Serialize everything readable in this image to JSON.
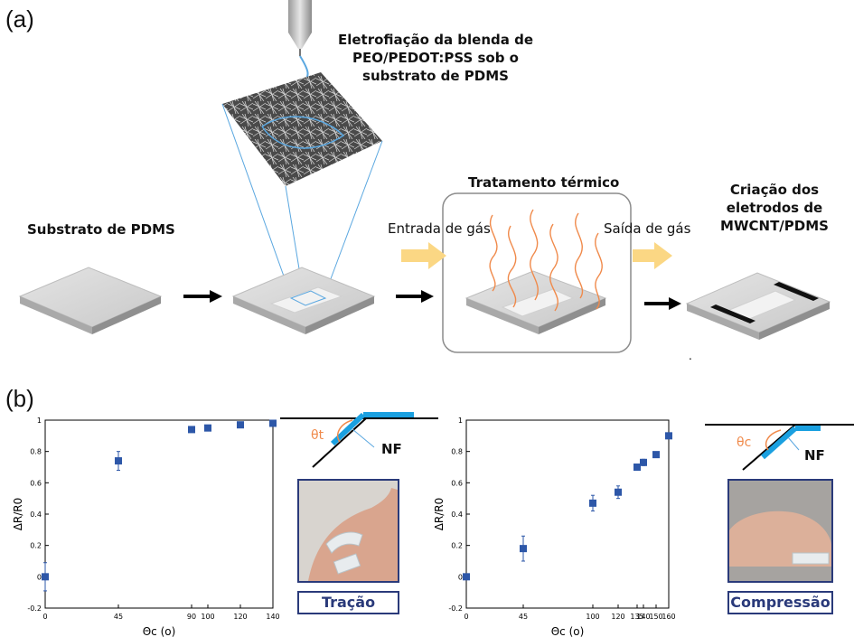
{
  "panel_a": {
    "label": "(a)",
    "electrospinning": "Eletrofiação da blenda de PEO/PEDOT:PSS sob o substrato de PDMS",
    "substrate": "Substrato de PDMS",
    "thermal": "Tratamento térmico",
    "gas_in": "Entrada de gás",
    "gas_out": "Saída de gás",
    "electrodes": "Criação dos eletrodos de MWCNT/PDMS"
  },
  "panel_b": {
    "label": "(b)",
    "left_angle_symbol": "θt",
    "left_nf": "NF",
    "left_caption": "Tração",
    "right_angle_symbol": "θc",
    "right_nf": "NF",
    "right_caption": "Compressão"
  },
  "chart_data": [
    {
      "type": "scatter",
      "title": "",
      "xlabel": "Θc (o)",
      "ylabel": "ΔR/R0",
      "xlim": [
        0,
        140
      ],
      "ylim": [
        -0.2,
        1.0
      ],
      "xticks": [
        0,
        45,
        90,
        100,
        120,
        140
      ],
      "yticks": [
        -0.2,
        0,
        0.2,
        0.4,
        0.6,
        0.8,
        1
      ],
      "x": [
        0,
        45,
        90,
        100,
        120,
        140
      ],
      "y": [
        0.0,
        0.74,
        0.94,
        0.95,
        0.97,
        0.98
      ],
      "err": [
        0.09,
        0.06,
        0.015,
        0.01,
        0.01,
        0.01
      ]
    },
    {
      "type": "scatter",
      "title": "",
      "xlabel": "Θc (o)",
      "ylabel": "ΔR/R0",
      "xlim": [
        0,
        160
      ],
      "ylim": [
        -0.2,
        1.0
      ],
      "xticks": [
        0,
        45,
        100,
        120,
        135,
        140,
        150,
        160
      ],
      "yticks": [
        -0.2,
        0,
        0.2,
        0.4,
        0.6,
        0.8,
        1
      ],
      "x": [
        0,
        45,
        100,
        120,
        135,
        140,
        150,
        160
      ],
      "y": [
        0.0,
        0.18,
        0.47,
        0.54,
        0.7,
        0.73,
        0.78,
        0.9
      ],
      "err": [
        0.01,
        0.08,
        0.05,
        0.04,
        0.02,
        0.02,
        0.015,
        0.01
      ]
    }
  ],
  "colors": {
    "marker": "#2d57a8",
    "frame": "#2a3a7a",
    "fiber": "#5aa7e0",
    "heat": "#f08a4b",
    "arrow_gas": "#fbd784",
    "strip": "#1aa0e0"
  }
}
